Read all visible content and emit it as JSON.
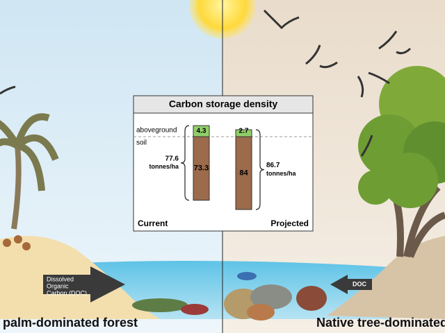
{
  "chart_data": {
    "type": "bar",
    "title": "Carbon storage density",
    "categories": [
      "Current",
      "Projected"
    ],
    "series": [
      {
        "name": "aboveground",
        "color": "#8fcf6a",
        "values": [
          4.3,
          2.7
        ]
      },
      {
        "name": "soil",
        "color": "#9b6b4b",
        "values": [
          73.3,
          84
        ]
      }
    ],
    "totals": [
      77.6,
      86.7
    ],
    "unit": "tonnes/ha"
  },
  "scene": {
    "left_label": "palm-dominated forest",
    "right_label": "Native tree-dominated forest",
    "doc_left": [
      "Dissolved",
      "Organic",
      "Carbon (DOC)"
    ],
    "doc_right": "DOC"
  }
}
